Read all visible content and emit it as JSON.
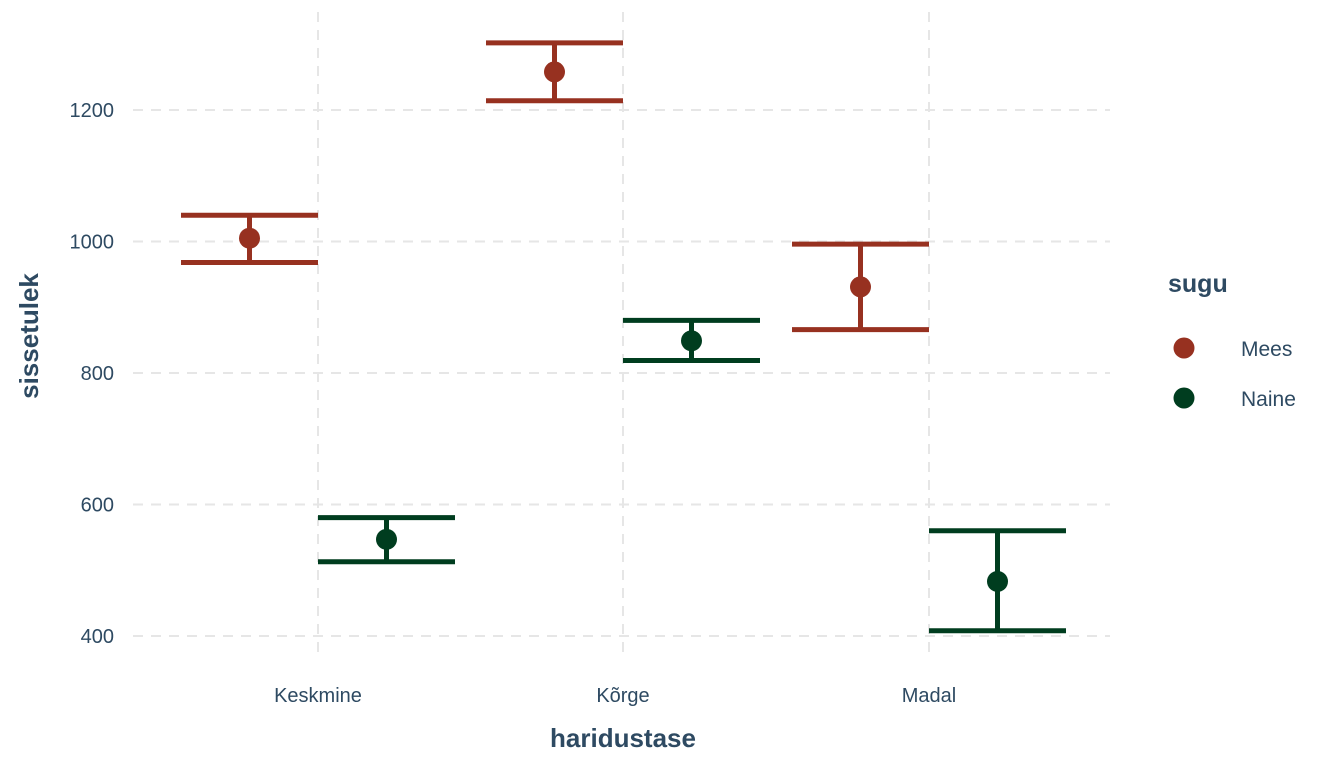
{
  "chart_data": {
    "type": "errorbar",
    "xlabel": "haridustase",
    "ylabel": "sissetulek",
    "categories": [
      "Keskmine",
      "Kõrge",
      "Madal"
    ],
    "y_ticks": [
      400,
      600,
      800,
      1000,
      1200
    ],
    "ylim": [
      370,
      1320
    ],
    "grid": true,
    "legend": {
      "title": "sugu",
      "position": "right"
    },
    "series": [
      {
        "name": "Mees",
        "color": "#973120",
        "points": [
          {
            "category": "Keskmine",
            "mean": 1005,
            "lower": 968,
            "upper": 1040
          },
          {
            "category": "Kõrge",
            "mean": 1258,
            "lower": 1214,
            "upper": 1302
          },
          {
            "category": "Madal",
            "mean": 931,
            "lower": 866,
            "upper": 996
          }
        ]
      },
      {
        "name": "Naine",
        "color": "#003d1f",
        "points": [
          {
            "category": "Keskmine",
            "mean": 547,
            "lower": 513,
            "upper": 580
          },
          {
            "category": "Kõrge",
            "mean": 849,
            "lower": 819,
            "upper": 880
          },
          {
            "category": "Madal",
            "mean": 483,
            "lower": 408,
            "upper": 560
          }
        ]
      }
    ]
  }
}
